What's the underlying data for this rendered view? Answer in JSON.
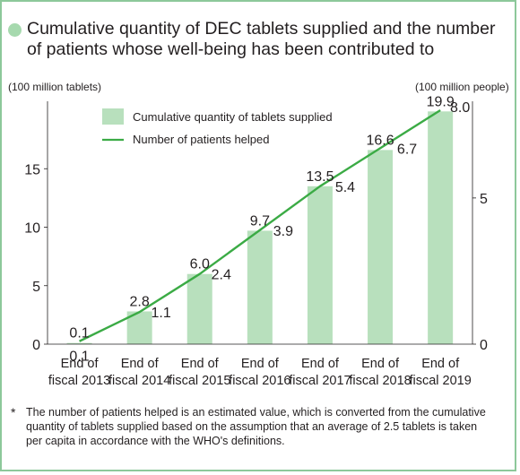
{
  "title": "Cumulative quantity of DEC tablets supplied and the number of patients whose well-being has been contributed to",
  "colors": {
    "bar": "#b8e0bd",
    "line": "#3bab45",
    "bullet": "#a6d9ae",
    "frame": "#8dc89a"
  },
  "chart_data": {
    "type": "bar",
    "title": "Cumulative quantity of DEC tablets supplied and the number of patients whose well-being has been contributed to",
    "categories": [
      "End of fiscal 2013",
      "End of fiscal 2014",
      "End of fiscal 2015",
      "End of fiscal 2016",
      "End of fiscal 2017",
      "End of fiscal 2018",
      "End of fiscal 2019"
    ],
    "category_lines": [
      [
        "End of",
        "fiscal 2013"
      ],
      [
        "End of",
        "fiscal 2014"
      ],
      [
        "End of",
        "fiscal 2015"
      ],
      [
        "End of",
        "fiscal 2016"
      ],
      [
        "End of",
        "fiscal 2017"
      ],
      [
        "End of",
        "fiscal 2018"
      ],
      [
        "End of",
        "fiscal 2019"
      ]
    ],
    "series": [
      {
        "name": "Cumulative quantity of tablets supplied",
        "type": "bar",
        "axis": "left",
        "values": [
          0.1,
          2.8,
          6.0,
          9.7,
          13.5,
          16.6,
          19.9
        ],
        "labels": [
          "0.1",
          "2.8",
          "6.0",
          "9.7",
          "13.5",
          "16.6",
          "19.9"
        ]
      },
      {
        "name": "Number of patients helped",
        "type": "line",
        "axis": "right",
        "values": [
          0.1,
          1.1,
          2.4,
          3.9,
          5.4,
          6.7,
          8.0
        ],
        "labels": [
          "0.1",
          "1.1",
          "2.4",
          "3.9",
          "5.4",
          "6.7",
          "8.0"
        ]
      }
    ],
    "ylabel_left": "(100 million tablets)",
    "ylabel_right": "(100 million people)",
    "ylim_left": [
      0,
      20
    ],
    "ylim_right": [
      0,
      8
    ],
    "yticks_left": [
      0,
      5,
      10,
      15
    ],
    "yticks_right": [
      0,
      5
    ],
    "grid": false,
    "legend_position": "top-left"
  },
  "footnote": {
    "mark": "*",
    "text": "The number of patients helped is an estimated value, which is converted from the cumulative quantity of tablets supplied based on the assumption that an average of 2.5 tablets is taken per capita in accordance with the WHO's definitions."
  }
}
